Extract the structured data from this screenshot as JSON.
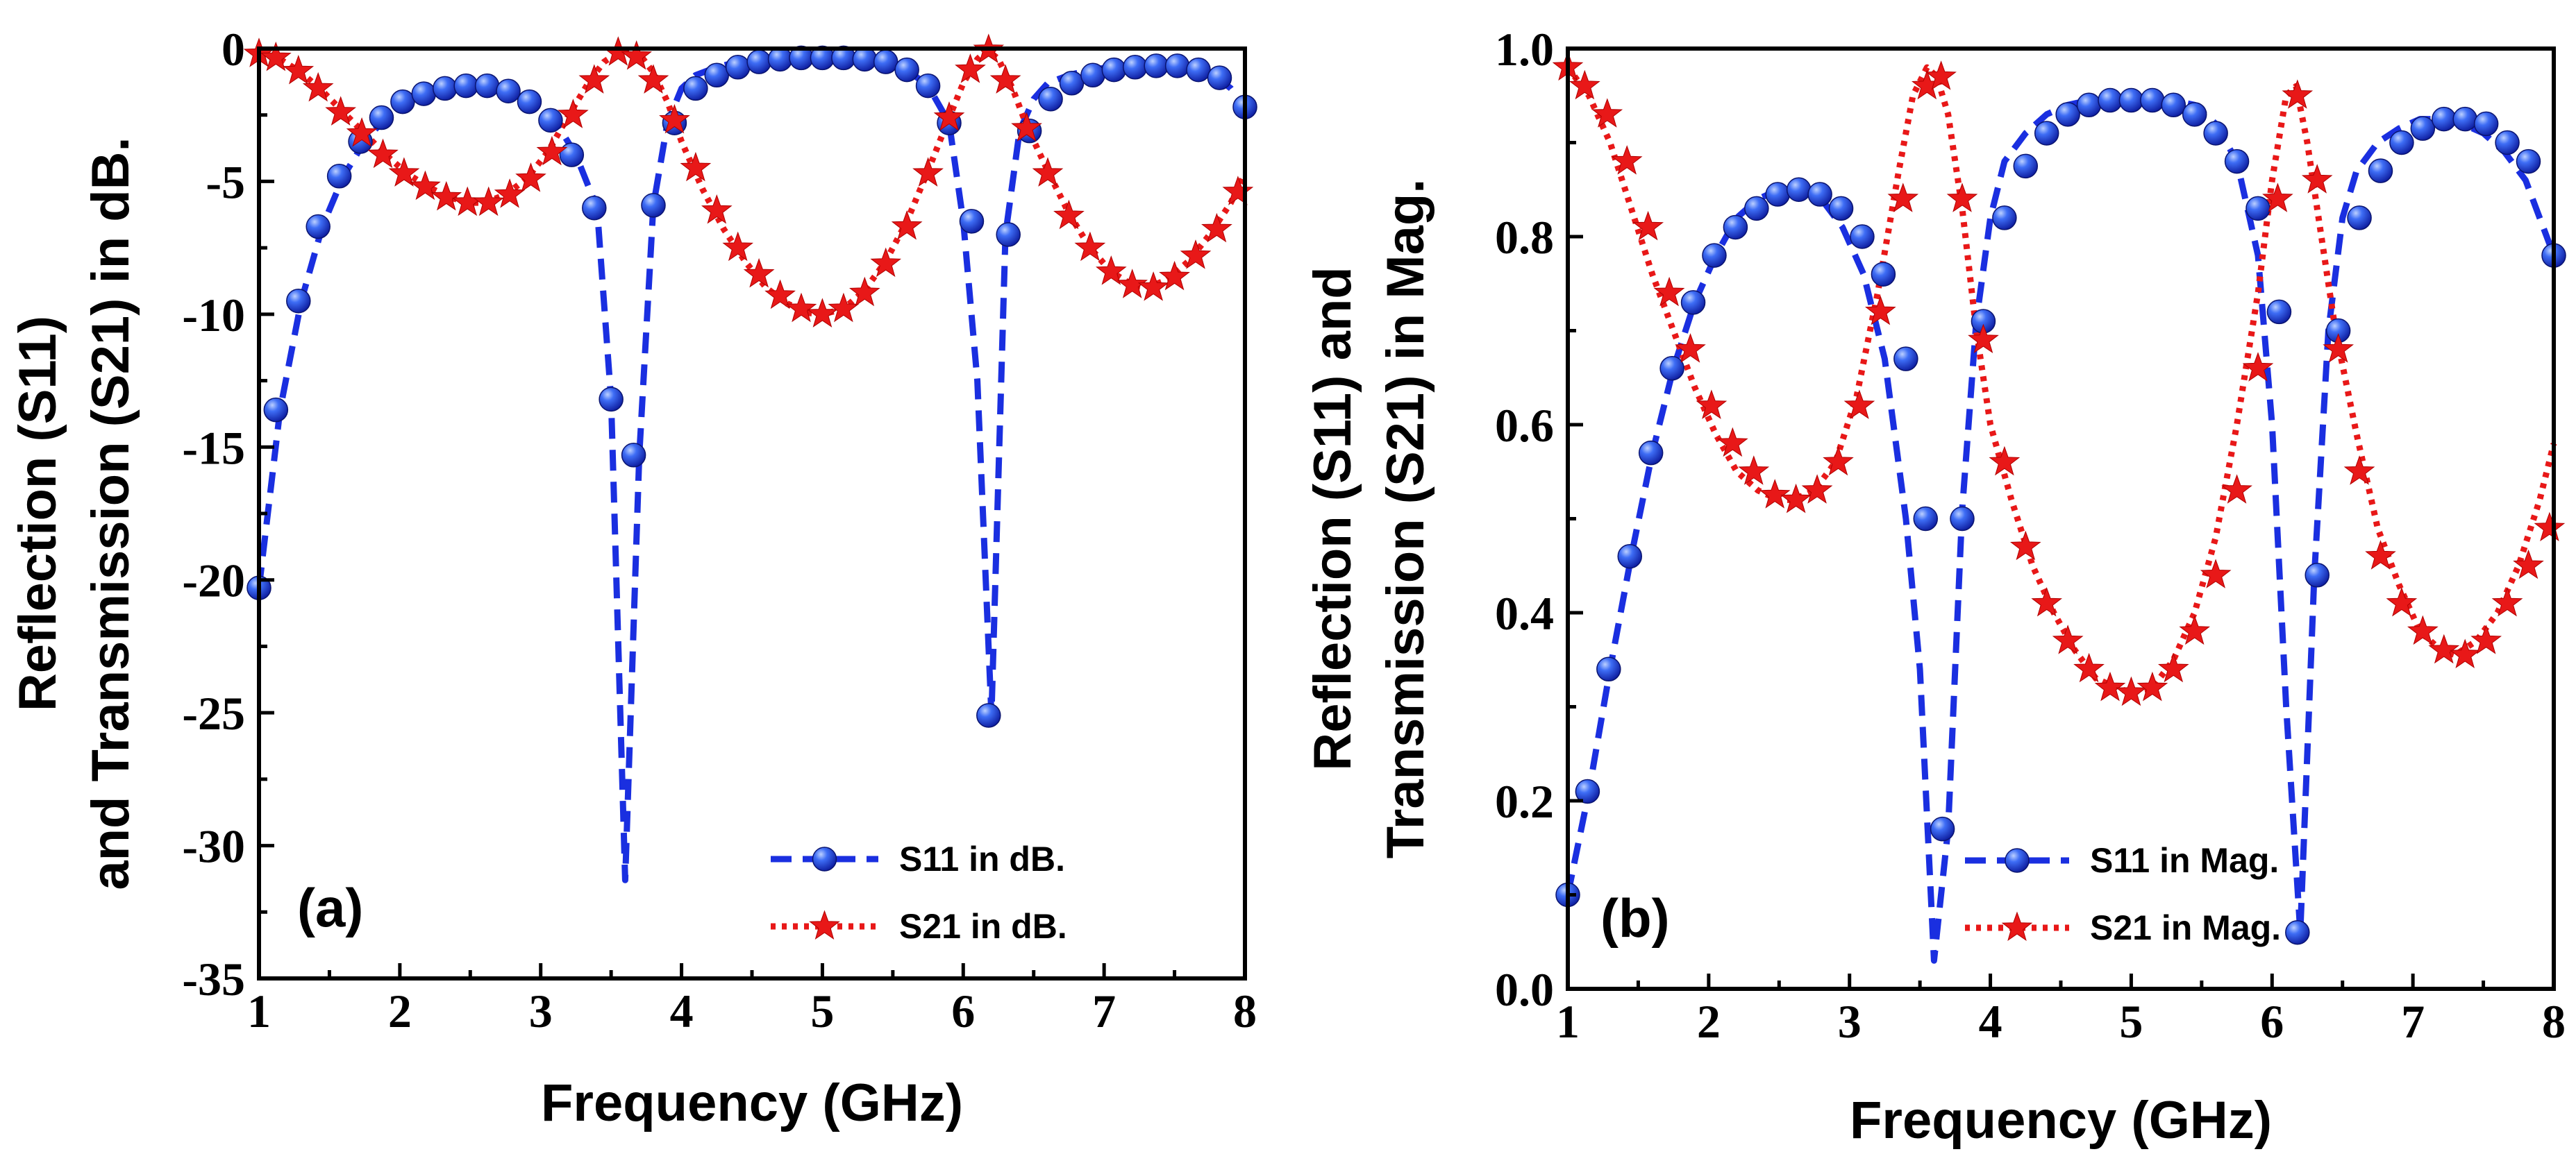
{
  "chart_data": [
    {
      "type": "line",
      "panel_label": "(a)",
      "xlabel": "Frequency (GHz)",
      "ylabel_lines": [
        "Reflection (S11)",
        "and Transmission (S21) in dB."
      ],
      "xlim": [
        1,
        8
      ],
      "ylim": [
        -35,
        0
      ],
      "xticks": [
        1,
        2,
        3,
        4,
        5,
        6,
        7,
        8
      ],
      "xtick_labels": [
        "1",
        "2",
        "3",
        "4",
        "5",
        "6",
        "7",
        "8"
      ],
      "yticks": [
        -35,
        -30,
        -25,
        -20,
        -15,
        -10,
        -5,
        0
      ],
      "ytick_labels": [
        "-35",
        "-30",
        "-25",
        "-20",
        "-15",
        "-10",
        "-5",
        "0"
      ],
      "legend_position": "bottom-right",
      "series": [
        {
          "name": "S11 in dB.",
          "color": "#1a2fe0",
          "line_style": "dashed",
          "marker": "sphere",
          "x": [
            1.0,
            1.15,
            1.3,
            1.45,
            1.6,
            1.75,
            1.9,
            2.05,
            2.2,
            2.35,
            2.5,
            2.65,
            2.8,
            2.95,
            3.1,
            3.25,
            3.4,
            3.5,
            3.6,
            3.7,
            3.8,
            3.9,
            4.0,
            4.1,
            4.25,
            4.4,
            4.55,
            4.7,
            4.85,
            5.0,
            5.15,
            5.3,
            5.45,
            5.6,
            5.75,
            5.9,
            6.0,
            6.1,
            6.2,
            6.3,
            6.4,
            6.5,
            6.6,
            6.75,
            6.9,
            7.05,
            7.2,
            7.35,
            7.5,
            7.65,
            7.8,
            7.9,
            8.0
          ],
          "values": [
            -20.3,
            -13.6,
            -9.5,
            -6.7,
            -4.8,
            -3.5,
            -2.6,
            -2.0,
            -1.7,
            -1.5,
            -1.4,
            -1.4,
            -1.6,
            -2.0,
            -2.7,
            -4.0,
            -6.0,
            -13.2,
            -31.3,
            -15.3,
            -5.9,
            -2.8,
            -1.5,
            -1.0,
            -0.7,
            -0.5,
            -0.4,
            -0.35,
            -0.35,
            -0.35,
            -0.35,
            -0.4,
            -0.5,
            -0.8,
            -1.4,
            -2.8,
            -6.5,
            -12.5,
            -25.1,
            -7.0,
            -3.1,
            -1.9,
            -1.3,
            -1.0,
            -0.8,
            -0.7,
            -0.65,
            -0.65,
            -0.7,
            -0.8,
            -1.1,
            -1.5,
            -2.2
          ],
          "marker_x": [
            1.0,
            1.12,
            1.28,
            1.42,
            1.57,
            1.72,
            1.87,
            2.02,
            2.17,
            2.32,
            2.47,
            2.62,
            2.77,
            2.92,
            3.07,
            3.22,
            3.38,
            3.5,
            3.66,
            3.8,
            3.95,
            4.1,
            4.25,
            4.4,
            4.55,
            4.7,
            4.85,
            5.0,
            5.15,
            5.3,
            5.45,
            5.6,
            5.75,
            5.9,
            6.06,
            6.18,
            6.32,
            6.47,
            6.62,
            6.77,
            6.92,
            7.07,
            7.22,
            7.37,
            7.52,
            7.67,
            7.82,
            8.0
          ],
          "marker_values": [
            -20.3,
            -13.6,
            -9.5,
            -6.7,
            -4.8,
            -3.5,
            -2.6,
            -2.0,
            -1.7,
            -1.5,
            -1.4,
            -1.4,
            -1.6,
            -2.0,
            -2.7,
            -4.0,
            -6.0,
            -13.2,
            -15.3,
            -5.9,
            -2.8,
            -1.5,
            -1.0,
            -0.7,
            -0.5,
            -0.4,
            -0.35,
            -0.35,
            -0.35,
            -0.4,
            -0.5,
            -0.8,
            -1.4,
            -2.8,
            -6.5,
            -25.1,
            -7.0,
            -3.1,
            -1.9,
            -1.3,
            -1.0,
            -0.8,
            -0.7,
            -0.65,
            -0.65,
            -0.8,
            -1.1,
            -2.2
          ]
        },
        {
          "name": "S21 in dB.",
          "color": "#e81818",
          "line_style": "dotted",
          "marker": "star",
          "x": [
            1.0,
            1.15,
            1.3,
            1.45,
            1.6,
            1.75,
            1.9,
            2.05,
            2.2,
            2.35,
            2.5,
            2.6,
            2.75,
            2.9,
            3.05,
            3.2,
            3.35,
            3.45,
            3.55,
            3.62,
            3.7,
            3.8,
            3.9,
            4.0,
            4.15,
            4.3,
            4.45,
            4.6,
            4.75,
            4.9,
            5.0,
            5.15,
            5.3,
            5.45,
            5.6,
            5.75,
            5.9,
            6.0,
            6.1,
            6.17,
            6.25,
            6.35,
            6.45,
            6.6,
            6.75,
            6.9,
            7.05,
            7.2,
            7.3,
            7.45,
            7.6,
            7.75,
            7.9,
            8.0
          ],
          "values": [
            -0.2,
            -0.4,
            -0.9,
            -1.6,
            -2.4,
            -3.2,
            -4.0,
            -4.7,
            -5.2,
            -5.6,
            -5.8,
            -5.8,
            -5.5,
            -4.9,
            -3.9,
            -2.5,
            -1.2,
            -0.5,
            -0.15,
            -0.05,
            -0.2,
            -0.9,
            -2.0,
            -3.5,
            -5.3,
            -6.8,
            -8.0,
            -9.0,
            -9.6,
            -9.95,
            -10.0,
            -9.8,
            -9.1,
            -8.0,
            -6.5,
            -4.6,
            -2.6,
            -1.3,
            -0.4,
            -0.05,
            -0.4,
            -1.5,
            -2.9,
            -4.6,
            -6.2,
            -7.5,
            -8.4,
            -8.9,
            -9.0,
            -8.7,
            -8.0,
            -7.0,
            -5.8,
            -4.7
          ],
          "marker_x": [
            1.0,
            1.12,
            1.28,
            1.42,
            1.58,
            1.73,
            1.88,
            2.03,
            2.18,
            2.33,
            2.48,
            2.63,
            2.78,
            2.93,
            3.08,
            3.23,
            3.38,
            3.55,
            3.68,
            3.8,
            3.95,
            4.1,
            4.25,
            4.4,
            4.55,
            4.7,
            4.85,
            5.0,
            5.15,
            5.3,
            5.45,
            5.6,
            5.75,
            5.9,
            6.05,
            6.18,
            6.3,
            6.45,
            6.6,
            6.75,
            6.9,
            7.05,
            7.2,
            7.35,
            7.5,
            7.65,
            7.8,
            7.95
          ],
          "marker_values": [
            -0.2,
            -0.35,
            -0.85,
            -1.5,
            -2.4,
            -3.2,
            -4.0,
            -4.7,
            -5.2,
            -5.6,
            -5.8,
            -5.8,
            -5.5,
            -4.9,
            -3.9,
            -2.5,
            -1.2,
            -0.15,
            -0.3,
            -1.2,
            -2.7,
            -4.5,
            -6.1,
            -7.5,
            -8.5,
            -9.3,
            -9.8,
            -10.0,
            -9.8,
            -9.2,
            -8.1,
            -6.7,
            -4.7,
            -2.6,
            -0.8,
            -0.05,
            -1.2,
            -3.0,
            -4.7,
            -6.3,
            -7.5,
            -8.4,
            -8.9,
            -9.0,
            -8.6,
            -7.8,
            -6.8,
            -5.4
          ]
        }
      ]
    },
    {
      "type": "line",
      "panel_label": "(b)",
      "xlabel": "Frequency (GHz)",
      "ylabel_lines": [
        "Reflection (S11) and",
        "Transmission (S21) in Mag."
      ],
      "xlim": [
        1,
        8
      ],
      "ylim": [
        0,
        1
      ],
      "xticks": [
        1,
        2,
        3,
        4,
        5,
        6,
        7,
        8
      ],
      "xtick_labels": [
        "1",
        "2",
        "3",
        "4",
        "5",
        "6",
        "7",
        "8"
      ],
      "yticks": [
        0,
        0.2,
        0.4,
        0.6,
        0.8,
        1.0
      ],
      "ytick_labels": [
        "0.0",
        "0.2",
        "0.4",
        "0.6",
        "0.8",
        "1.0"
      ],
      "legend_position": "bottom-center",
      "series": [
        {
          "name": "S11 in Mag.",
          "color": "#1a2fe0",
          "line_style": "dashed",
          "marker": "sphere",
          "x": [
            1.0,
            1.15,
            1.3,
            1.45,
            1.6,
            1.75,
            1.9,
            2.05,
            2.2,
            2.35,
            2.5,
            2.65,
            2.8,
            2.95,
            3.1,
            3.25,
            3.4,
            3.5,
            3.6,
            3.7,
            3.8,
            3.9,
            4.0,
            4.1,
            4.25,
            4.4,
            4.55,
            4.7,
            4.85,
            5.0,
            5.15,
            5.3,
            5.45,
            5.6,
            5.75,
            5.9,
            6.0,
            6.1,
            6.2,
            6.3,
            6.4,
            6.5,
            6.6,
            6.75,
            6.9,
            7.05,
            7.2,
            7.35,
            7.5,
            7.65,
            7.8,
            7.9,
            8.0
          ],
          "values": [
            0.1,
            0.21,
            0.34,
            0.46,
            0.57,
            0.66,
            0.73,
            0.78,
            0.82,
            0.84,
            0.85,
            0.85,
            0.84,
            0.81,
            0.76,
            0.67,
            0.5,
            0.34,
            0.03,
            0.17,
            0.51,
            0.71,
            0.82,
            0.88,
            0.91,
            0.93,
            0.94,
            0.945,
            0.945,
            0.945,
            0.945,
            0.945,
            0.94,
            0.92,
            0.88,
            0.78,
            0.6,
            0.3,
            0.06,
            0.44,
            0.7,
            0.82,
            0.87,
            0.9,
            0.915,
            0.925,
            0.925,
            0.92,
            0.91,
            0.89,
            0.86,
            0.82,
            0.78
          ],
          "marker_x": [
            1.0,
            1.14,
            1.29,
            1.44,
            1.59,
            1.74,
            1.89,
            2.04,
            2.19,
            2.34,
            2.49,
            2.64,
            2.79,
            2.94,
            3.09,
            3.24,
            3.4,
            3.54,
            3.66,
            3.8,
            3.95,
            4.1,
            4.25,
            4.4,
            4.55,
            4.7,
            4.85,
            5.0,
            5.15,
            5.3,
            5.45,
            5.6,
            5.75,
            5.9,
            6.05,
            6.18,
            6.32,
            6.47,
            6.62,
            6.77,
            6.92,
            7.07,
            7.22,
            7.37,
            7.52,
            7.67,
            7.82,
            8.0
          ],
          "marker_values": [
            0.1,
            0.21,
            0.34,
            0.46,
            0.57,
            0.66,
            0.73,
            0.78,
            0.81,
            0.83,
            0.845,
            0.85,
            0.845,
            0.83,
            0.8,
            0.76,
            0.67,
            0.5,
            0.17,
            0.5,
            0.71,
            0.82,
            0.875,
            0.91,
            0.93,
            0.94,
            0.945,
            0.945,
            0.945,
            0.94,
            0.93,
            0.91,
            0.88,
            0.83,
            0.72,
            0.06,
            0.44,
            0.7,
            0.82,
            0.87,
            0.9,
            0.915,
            0.925,
            0.925,
            0.92,
            0.9,
            0.88,
            0.78
          ]
        },
        {
          "name": "S21 in Mag.",
          "color": "#e81818",
          "line_style": "dotted",
          "marker": "star",
          "x": [
            1.0,
            1.15,
            1.3,
            1.45,
            1.6,
            1.75,
            1.9,
            2.05,
            2.2,
            2.35,
            2.5,
            2.6,
            2.75,
            2.9,
            3.05,
            3.2,
            3.35,
            3.45,
            3.55,
            3.62,
            3.7,
            3.8,
            3.9,
            4.0,
            4.15,
            4.3,
            4.45,
            4.6,
            4.75,
            4.9,
            5.0,
            5.15,
            5.3,
            5.45,
            5.6,
            5.75,
            5.9,
            6.0,
            6.1,
            6.17,
            6.25,
            6.35,
            6.45,
            6.6,
            6.75,
            6.9,
            7.05,
            7.2,
            7.3,
            7.45,
            7.6,
            7.75,
            7.9,
            8.0
          ],
          "values": [
            0.98,
            0.95,
            0.9,
            0.83,
            0.76,
            0.7,
            0.64,
            0.59,
            0.55,
            0.53,
            0.52,
            0.52,
            0.53,
            0.56,
            0.63,
            0.74,
            0.87,
            0.95,
            0.98,
            0.97,
            0.93,
            0.83,
            0.7,
            0.6,
            0.52,
            0.45,
            0.4,
            0.36,
            0.33,
            0.32,
            0.315,
            0.32,
            0.35,
            0.4,
            0.48,
            0.6,
            0.74,
            0.86,
            0.95,
            0.96,
            0.9,
            0.8,
            0.7,
            0.59,
            0.49,
            0.43,
            0.38,
            0.36,
            0.355,
            0.37,
            0.4,
            0.45,
            0.52,
            0.58
          ],
          "marker_x": [
            1.0,
            1.12,
            1.28,
            1.42,
            1.57,
            1.72,
            1.87,
            2.02,
            2.17,
            2.32,
            2.47,
            2.62,
            2.77,
            2.92,
            3.07,
            3.22,
            3.38,
            3.55,
            3.65,
            3.8,
            3.95,
            4.1,
            4.25,
            4.4,
            4.55,
            4.7,
            4.85,
            5.0,
            5.15,
            5.3,
            5.45,
            5.6,
            5.75,
            5.9,
            6.04,
            6.18,
            6.32,
            6.47,
            6.62,
            6.77,
            6.92,
            7.07,
            7.22,
            7.37,
            7.52,
            7.67,
            7.82,
            7.97
          ],
          "marker_values": [
            0.98,
            0.96,
            0.93,
            0.88,
            0.81,
            0.74,
            0.68,
            0.62,
            0.58,
            0.55,
            0.525,
            0.52,
            0.53,
            0.56,
            0.62,
            0.72,
            0.84,
            0.96,
            0.97,
            0.84,
            0.69,
            0.56,
            0.47,
            0.41,
            0.37,
            0.34,
            0.32,
            0.315,
            0.32,
            0.34,
            0.38,
            0.44,
            0.53,
            0.66,
            0.84,
            0.95,
            0.86,
            0.68,
            0.55,
            0.46,
            0.41,
            0.38,
            0.36,
            0.355,
            0.37,
            0.41,
            0.45,
            0.49
          ]
        }
      ]
    }
  ]
}
